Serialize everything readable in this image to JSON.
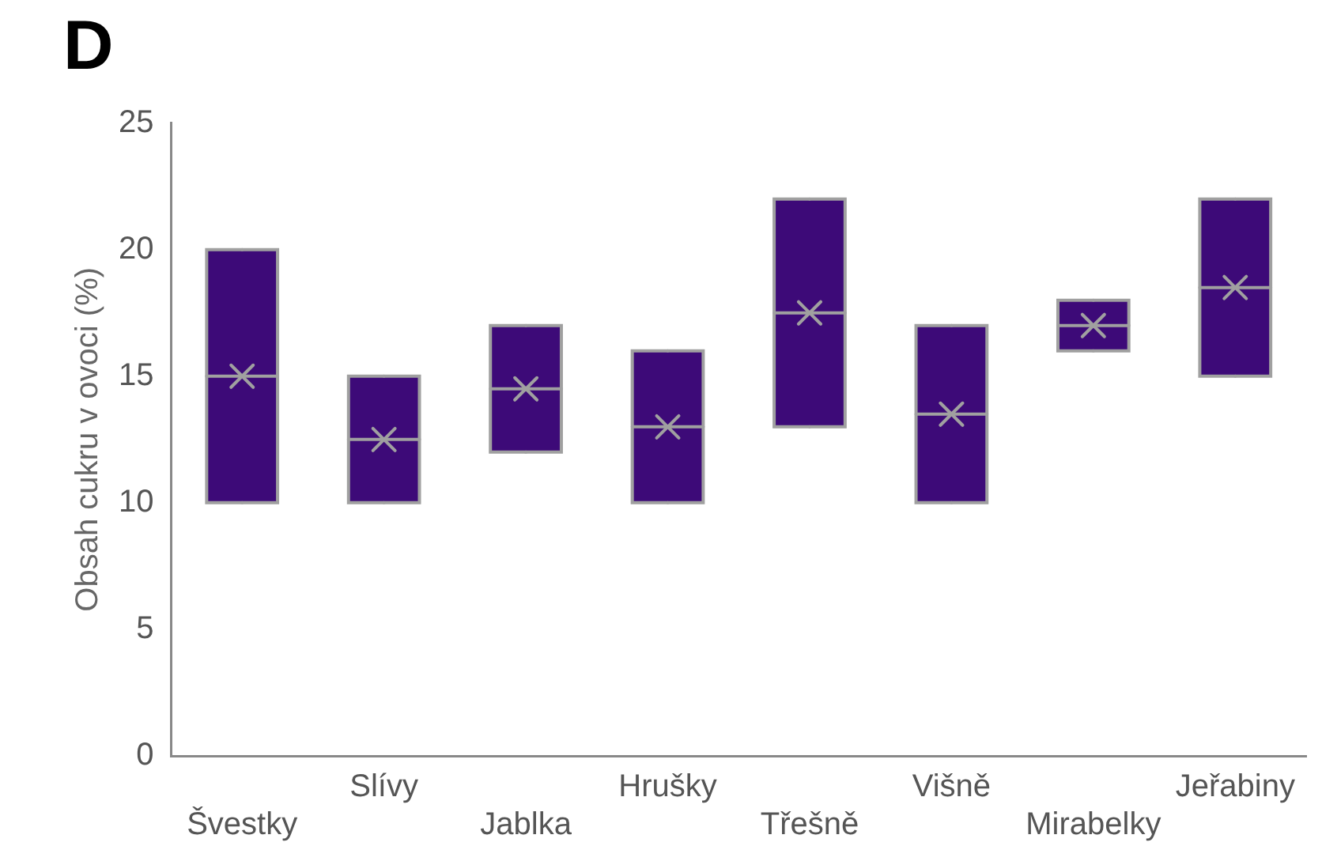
{
  "chart_data": {
    "type": "box",
    "title": "D",
    "ylabel": "Obsah cukru v ovoci (%)",
    "categories": [
      "Švestky",
      "Slívy",
      "Jablka",
      "Hrušky",
      "Třešně",
      "Višně",
      "Mirabelky",
      "Jeřabiny"
    ],
    "color": "#3d0a78",
    "boxes": [
      {
        "low": 10,
        "q1": 10,
        "median": 15,
        "q3": 20,
        "high": 20,
        "mean": 15
      },
      {
        "low": 10,
        "q1": 10,
        "median": 12.5,
        "q3": 15,
        "high": 15,
        "mean": 12.5
      },
      {
        "low": 12,
        "q1": 12,
        "median": 14.5,
        "q3": 17,
        "high": 17,
        "mean": 14.5
      },
      {
        "low": 10,
        "q1": 10,
        "median": 13,
        "q3": 16,
        "high": 16,
        "mean": 13
      },
      {
        "low": 13,
        "q1": 13,
        "median": 17.5,
        "q3": 22,
        "high": 22,
        "mean": 17.5
      },
      {
        "low": 10,
        "q1": 10,
        "median": 13.5,
        "q3": 17,
        "high": 17,
        "mean": 13.5
      },
      {
        "low": 16,
        "q1": 16,
        "median": 17,
        "q3": 18,
        "high": 18,
        "mean": 17
      },
      {
        "low": 15,
        "q1": 15,
        "median": 18.5,
        "q3": 22,
        "high": 22,
        "mean": 18.5
      }
    ],
    "ylim": [
      0,
      25
    ],
    "yticks": [
      0,
      5,
      10,
      15,
      20,
      25
    ],
    "grid": false,
    "legend": false
  }
}
